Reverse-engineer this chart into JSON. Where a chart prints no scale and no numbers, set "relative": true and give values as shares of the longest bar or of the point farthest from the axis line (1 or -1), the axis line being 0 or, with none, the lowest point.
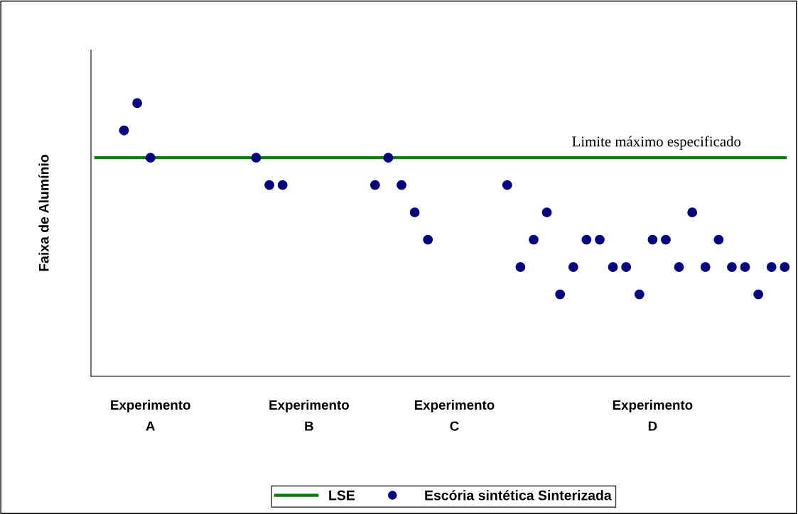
{
  "chart_data": {
    "type": "scatter",
    "relative": true,
    "ylabel": "Faixa de Alumínio",
    "categories": [
      null,
      null,
      "Experimento\nA",
      null,
      null,
      null,
      null,
      null,
      null,
      null,
      null,
      null,
      null,
      null,
      "Experimento\nB",
      null,
      null,
      null,
      null,
      null,
      null,
      null,
      null,
      null,
      null,
      "Experimento\nC",
      null,
      null,
      null,
      null,
      null,
      null,
      null,
      null,
      null,
      null,
      null,
      null,
      null,
      null,
      "Experimento\nD",
      null,
      null,
      null,
      null,
      null,
      null,
      null,
      null,
      null,
      null
    ],
    "series": [
      {
        "name": "Escória sintética Sinterizada",
        "color": "#000080",
        "values": [
          0.9,
          1.0,
          0.8,
          null,
          null,
          null,
          null,
          null,
          null,
          null,
          0.8,
          0.7,
          0.7,
          null,
          null,
          null,
          null,
          null,
          null,
          0.7,
          0.8,
          0.7,
          0.6,
          0.5,
          null,
          null,
          null,
          null,
          null,
          0.7,
          0.4,
          0.5,
          0.6,
          0.3,
          0.4,
          0.5,
          0.5,
          0.4,
          0.4,
          0.3,
          0.5,
          0.5,
          0.4,
          0.6,
          0.4,
          0.5,
          0.4,
          0.4,
          0.3,
          0.4,
          0.4
        ]
      }
    ],
    "ref_lines": [
      {
        "axis": "y",
        "value": 0.8,
        "label": "LSE",
        "color": "#008000"
      }
    ],
    "annotations": [
      "Limite máximo especificado"
    ],
    "marker": "circle",
    "legend": "bottom",
    "grid": false
  }
}
